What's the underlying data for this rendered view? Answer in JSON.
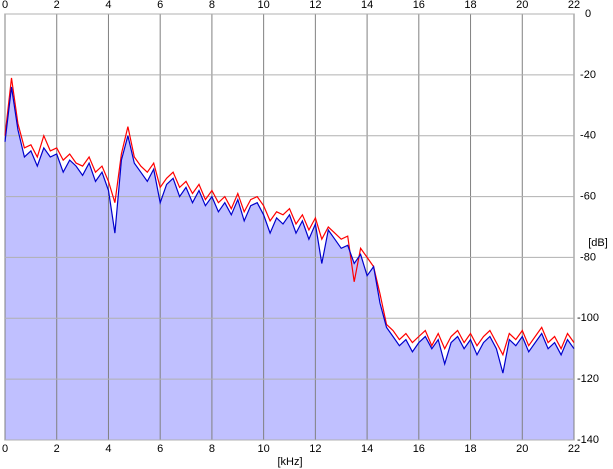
{
  "chart_data": {
    "type": "line",
    "xlabel": "[kHz]",
    "ylabel": "[dB]",
    "x": [
      0,
      0.25,
      0.5,
      0.75,
      1,
      1.25,
      1.5,
      1.75,
      2,
      2.25,
      2.5,
      2.75,
      3,
      3.25,
      3.5,
      3.75,
      4,
      4.25,
      4.5,
      4.75,
      5,
      5.25,
      5.5,
      5.75,
      6,
      6.25,
      6.5,
      6.75,
      7,
      7.25,
      7.5,
      7.75,
      8,
      8.25,
      8.5,
      8.75,
      9,
      9.25,
      9.5,
      9.75,
      10,
      10.25,
      10.5,
      10.75,
      11,
      11.25,
      11.5,
      11.75,
      12,
      12.25,
      12.5,
      12.75,
      13,
      13.25,
      13.5,
      13.75,
      14,
      14.25,
      14.5,
      14.75,
      15,
      15.25,
      15.5,
      15.75,
      16,
      16.25,
      16.5,
      16.75,
      17,
      17.25,
      17.5,
      17.75,
      18,
      18.25,
      18.5,
      18.75,
      19,
      19.25,
      19.5,
      19.75,
      20,
      20.25,
      20.5,
      20.75,
      21,
      21.25,
      21.5,
      21.75,
      22
    ],
    "series": [
      {
        "color": "#ff0000",
        "values": [
          -40,
          -21,
          -36,
          -44,
          -43,
          -47,
          -40,
          -45,
          -44,
          -48,
          -46,
          -49,
          -50,
          -47,
          -52,
          -50,
          -55,
          -62,
          -46,
          -37,
          -47,
          -50,
          -52,
          -49,
          -57,
          -54,
          -52,
          -57,
          -55,
          -59,
          -56,
          -61,
          -58,
          -62,
          -60,
          -64,
          -59,
          -65,
          -61,
          -60,
          -63,
          -68,
          -65,
          -66,
          -64,
          -69,
          -66,
          -71,
          -67,
          -74,
          -70,
          -72,
          -74,
          -73,
          -88,
          -77,
          -80,
          -83,
          -92,
          -102,
          -104,
          -107,
          -105,
          -108,
          -106,
          -104,
          -109,
          -105,
          -110,
          -106,
          -104,
          -108,
          -105,
          -109,
          -106,
          -104,
          -108,
          -112,
          -105,
          -107,
          -104,
          -109,
          -106,
          -103,
          -108,
          -106,
          -110,
          -105,
          -108
        ]
      },
      {
        "color": "#0000cc",
        "fill": "#c0c0ff",
        "values": [
          -42,
          -24,
          -38,
          -47,
          -45,
          -50,
          -44,
          -47,
          -46,
          -52,
          -48,
          -50,
          -53,
          -49,
          -55,
          -52,
          -58,
          -72,
          -48,
          -40,
          -49,
          -52,
          -55,
          -51,
          -62,
          -56,
          -54,
          -60,
          -57,
          -62,
          -58,
          -63,
          -60,
          -65,
          -62,
          -66,
          -61,
          -68,
          -63,
          -62,
          -66,
          -72,
          -67,
          -69,
          -66,
          -72,
          -68,
          -74,
          -69,
          -82,
          -71,
          -74,
          -77,
          -76,
          -82,
          -79,
          -86,
          -83,
          -95,
          -103,
          -106,
          -109,
          -107,
          -111,
          -108,
          -106,
          -110,
          -107,
          -115,
          -108,
          -106,
          -110,
          -107,
          -112,
          -108,
          -106,
          -110,
          -118,
          -107,
          -109,
          -106,
          -111,
          -108,
          -105,
          -110,
          -108,
          -112,
          -107,
          -110
        ]
      }
    ],
    "xlim": [
      0,
      22
    ],
    "xticks": [
      0,
      2,
      4,
      6,
      8,
      10,
      12,
      14,
      16,
      18,
      20,
      22
    ],
    "ylim": [
      -140,
      0
    ],
    "yticks": [
      0,
      -20,
      -40,
      -60,
      -80,
      -100,
      -120,
      -140
    ],
    "grid": true
  }
}
